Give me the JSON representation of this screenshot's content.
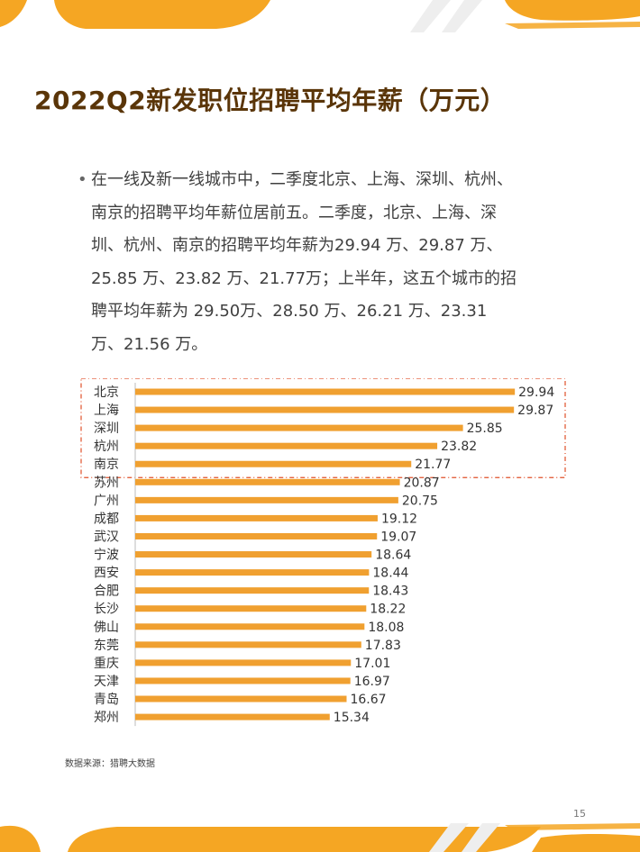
{
  "title": "2022Q2新发职位招聘平均年薪（万元）",
  "bullet_text": "在一线及新一线城市中，二季度北京、上海、深圳、杭州、南京的招聘平均年薪位居前五。二季度，北京、上海、深圳、杭州、南京的招聘平均年薪为29.94 万、29.87 万、25.85 万、23.82 万、21.77万；上半年，这五个城市的招聘平均年薪为 29.50万、28.50 万、26.21 万、23.31 万、21.56 万。",
  "source": "数据来源：猎聘大数据",
  "page_number": "15",
  "colors": {
    "bar": "#f0a030",
    "title": "#5a3508",
    "highlight_box": "#e0502a",
    "accent": "#f5a623"
  },
  "chart_data": {
    "type": "bar",
    "orientation": "horizontal",
    "categories": [
      "北京",
      "上海",
      "深圳",
      "杭州",
      "南京",
      "苏州",
      "广州",
      "成都",
      "武汉",
      "宁波",
      "西安",
      "合肥",
      "长沙",
      "佛山",
      "东莞",
      "重庆",
      "天津",
      "青岛",
      "郑州"
    ],
    "values": [
      29.94,
      29.87,
      25.85,
      23.82,
      21.77,
      20.87,
      20.75,
      19.12,
      19.07,
      18.64,
      18.44,
      18.43,
      18.22,
      18.08,
      17.83,
      17.01,
      16.97,
      16.67,
      15.34
    ],
    "labels": [
      "29.94",
      "29.87",
      "25.85",
      "23.82",
      "21.77",
      "20.87",
      "20.75",
      "19.12",
      "19.07",
      "18.64",
      "18.44",
      "18.43",
      "18.22",
      "18.08",
      "17.83",
      "17.01",
      "16.97",
      "16.67",
      "15.34"
    ],
    "highlight_top_n": 5,
    "xlim": [
      0,
      30
    ],
    "grid": false,
    "legend": "none"
  }
}
